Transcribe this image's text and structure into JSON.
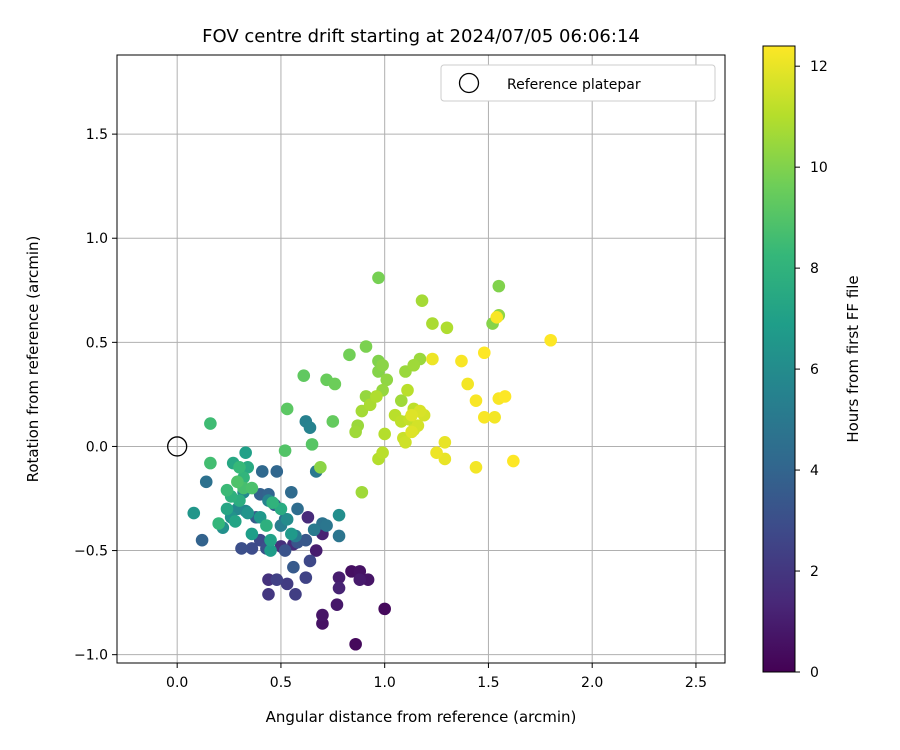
{
  "chart_data": {
    "type": "scatter",
    "title": "FOV centre drift starting at 2024/07/05 06:06:14",
    "xlabel": "Angular distance from reference (arcmin)",
    "ylabel": "Rotation from reference (arcmin)",
    "xlim": [
      -0.29,
      2.64
    ],
    "ylim": [
      -1.04,
      1.88
    ],
    "xticks": [
      0.0,
      0.5,
      1.0,
      1.5,
      2.0,
      2.5
    ],
    "xtick_labels": [
      "0.0",
      "0.5",
      "1.0",
      "1.5",
      "2.0",
      "2.5"
    ],
    "yticks": [
      -1.0,
      -0.5,
      0.0,
      0.5,
      1.0,
      1.5
    ],
    "ytick_labels": [
      "−1.0",
      "−0.5",
      "0.0",
      "0.5",
      "1.0",
      "1.5"
    ],
    "grid": true,
    "legend": {
      "placement": "top-right",
      "entries": [
        "Reference platepar"
      ]
    },
    "reference_point": {
      "name": "Reference platepar",
      "x": 0.0,
      "y": 0.0,
      "marker": "open-circle"
    },
    "colorbar": {
      "label": "Hours from first FF file",
      "colormap": "viridis",
      "range": [
        0,
        12.4
      ],
      "ticks": [
        0,
        2,
        4,
        6,
        8,
        10,
        12
      ],
      "tick_labels": [
        "0",
        "2",
        "4",
        "6",
        "8",
        "10",
        "12"
      ],
      "colors": [
        "#440154",
        "#482878",
        "#3e4989",
        "#31688e",
        "#26828e",
        "#1f9e89",
        "#35b779",
        "#6ece58",
        "#b5de2b",
        "#fde725"
      ]
    },
    "points": [
      [
        1.0,
        -0.78,
        0.3
      ],
      [
        0.86,
        -0.95,
        0.3
      ],
      [
        0.7,
        -0.85,
        0.6
      ],
      [
        0.7,
        -0.81,
        0.7
      ],
      [
        0.77,
        -0.76,
        0.8
      ],
      [
        0.84,
        -0.6,
        0.5
      ],
      [
        0.88,
        -0.6,
        0.6
      ],
      [
        0.92,
        -0.64,
        0.7
      ],
      [
        0.78,
        -0.63,
        1.0
      ],
      [
        0.78,
        -0.68,
        1.2
      ],
      [
        0.88,
        -0.64,
        0.9
      ],
      [
        0.67,
        -0.5,
        1.0
      ],
      [
        0.7,
        -0.42,
        1.2
      ],
      [
        0.63,
        -0.34,
        1.5
      ],
      [
        0.56,
        -0.47,
        1.6
      ],
      [
        0.5,
        -0.48,
        1.7
      ],
      [
        0.44,
        -0.64,
        1.8
      ],
      [
        0.44,
        -0.71,
        2.0
      ],
      [
        0.53,
        -0.66,
        2.2
      ],
      [
        0.57,
        -0.71,
        2.3
      ],
      [
        0.48,
        -0.64,
        2.4
      ],
      [
        0.62,
        -0.63,
        2.5
      ],
      [
        0.64,
        -0.55,
        2.7
      ],
      [
        0.4,
        -0.45,
        2.8
      ],
      [
        0.36,
        -0.49,
        2.9
      ],
      [
        0.31,
        -0.49,
        3.0
      ],
      [
        0.43,
        -0.49,
        3.1
      ],
      [
        0.52,
        -0.5,
        3.2
      ],
      [
        0.58,
        -0.46,
        3.3
      ],
      [
        0.62,
        -0.45,
        3.4
      ],
      [
        0.56,
        -0.58,
        3.5
      ],
      [
        0.47,
        -0.28,
        3.6
      ],
      [
        0.38,
        -0.34,
        3.7
      ],
      [
        0.4,
        -0.23,
        3.8
      ],
      [
        0.12,
        -0.45,
        3.9
      ],
      [
        0.44,
        -0.23,
        4.0
      ],
      [
        0.48,
        -0.12,
        4.1
      ],
      [
        0.41,
        -0.12,
        4.2
      ],
      [
        0.55,
        -0.22,
        4.3
      ],
      [
        0.58,
        -0.3,
        4.4
      ],
      [
        0.52,
        -0.35,
        4.5
      ],
      [
        0.14,
        -0.17,
        4.6
      ],
      [
        0.7,
        -0.37,
        4.7
      ],
      [
        0.78,
        -0.43,
        4.8
      ],
      [
        0.72,
        -0.38,
        4.9
      ],
      [
        0.67,
        -0.12,
        5.0
      ],
      [
        0.66,
        -0.4,
        5.1
      ],
      [
        0.57,
        -0.43,
        5.2
      ],
      [
        0.5,
        -0.38,
        5.3
      ],
      [
        0.62,
        0.12,
        5.4
      ],
      [
        0.64,
        0.09,
        5.5
      ],
      [
        0.44,
        -0.26,
        5.6
      ],
      [
        0.33,
        -0.31,
        5.7
      ],
      [
        0.29,
        -0.3,
        5.8
      ],
      [
        0.32,
        -0.22,
        5.9
      ],
      [
        0.53,
        -0.35,
        6.0
      ],
      [
        0.78,
        -0.33,
        6.1
      ],
      [
        0.22,
        -0.39,
        6.2
      ],
      [
        0.26,
        -0.34,
        6.3
      ],
      [
        0.34,
        -0.32,
        6.4
      ],
      [
        0.08,
        -0.32,
        6.5
      ],
      [
        0.4,
        -0.34,
        6.6
      ],
      [
        0.55,
        -0.42,
        6.7
      ],
      [
        0.45,
        -0.5,
        6.8
      ],
      [
        0.36,
        -0.42,
        6.9
      ],
      [
        0.33,
        -0.03,
        7.0
      ],
      [
        0.45,
        -0.45,
        7.1
      ],
      [
        0.28,
        -0.36,
        7.2
      ],
      [
        0.24,
        -0.3,
        7.3
      ],
      [
        0.27,
        -0.08,
        7.4
      ],
      [
        0.34,
        -0.1,
        7.5
      ],
      [
        0.5,
        -0.3,
        7.6
      ],
      [
        0.3,
        -0.26,
        7.7
      ],
      [
        0.43,
        -0.38,
        7.8
      ],
      [
        0.26,
        -0.24,
        7.9
      ],
      [
        0.46,
        -0.27,
        8.0
      ],
      [
        0.32,
        -0.15,
        8.1
      ],
      [
        0.2,
        -0.37,
        8.2
      ],
      [
        0.3,
        -0.1,
        8.3
      ],
      [
        0.24,
        -0.21,
        8.4
      ],
      [
        0.16,
        0.11,
        8.5
      ],
      [
        0.16,
        -0.08,
        8.6
      ],
      [
        0.32,
        -0.2,
        8.7
      ],
      [
        0.36,
        -0.2,
        8.8
      ],
      [
        0.29,
        -0.17,
        8.9
      ],
      [
        0.52,
        -0.02,
        9.0
      ],
      [
        0.65,
        0.01,
        9.1
      ],
      [
        0.53,
        0.18,
        9.2
      ],
      [
        0.61,
        0.34,
        9.3
      ],
      [
        0.75,
        0.12,
        9.4
      ],
      [
        0.72,
        0.32,
        9.5
      ],
      [
        0.76,
        0.3,
        9.6
      ],
      [
        0.83,
        0.44,
        9.7
      ],
      [
        0.97,
        0.81,
        9.8
      ],
      [
        0.91,
        0.48,
        9.9
      ],
      [
        0.97,
        0.41,
        10.0
      ],
      [
        0.97,
        0.36,
        10.1
      ],
      [
        0.99,
        0.39,
        10.2
      ],
      [
        1.01,
        0.32,
        10.3
      ],
      [
        0.99,
        0.27,
        10.4
      ],
      [
        1.1,
        0.36,
        10.5
      ],
      [
        1.08,
        0.22,
        10.6
      ],
      [
        1.18,
        0.7,
        10.7
      ],
      [
        1.23,
        0.59,
        10.8
      ],
      [
        1.3,
        0.57,
        10.9
      ],
      [
        1.55,
        0.77,
        10.0
      ],
      [
        1.52,
        0.59,
        10.1
      ],
      [
        1.55,
        0.63,
        10.3
      ],
      [
        1.17,
        0.42,
        10.5
      ],
      [
        1.14,
        0.39,
        10.6
      ],
      [
        0.91,
        0.24,
        10.4
      ],
      [
        0.87,
        0.1,
        10.5
      ],
      [
        0.86,
        0.07,
        10.6
      ],
      [
        0.89,
        0.17,
        10.7
      ],
      [
        0.93,
        0.2,
        10.8
      ],
      [
        0.96,
        0.24,
        10.9
      ],
      [
        1.0,
        0.06,
        11.0
      ],
      [
        1.05,
        0.15,
        11.1
      ],
      [
        1.08,
        0.12,
        11.2
      ],
      [
        1.11,
        0.27,
        11.1
      ],
      [
        1.14,
        0.18,
        11.2
      ],
      [
        1.12,
        0.13,
        11.3
      ],
      [
        1.09,
        0.04,
        11.4
      ],
      [
        1.1,
        0.02,
        11.5
      ],
      [
        1.14,
        0.08,
        11.5
      ],
      [
        1.16,
        0.1,
        11.6
      ],
      [
        1.19,
        0.15,
        11.6
      ],
      [
        1.17,
        0.17,
        11.7
      ],
      [
        1.13,
        0.15,
        11.8
      ],
      [
        1.13,
        0.07,
        11.8
      ],
      [
        0.97,
        -0.06,
        11.0
      ],
      [
        0.99,
        -0.03,
        11.1
      ],
      [
        0.89,
        -0.22,
        10.6
      ],
      [
        0.69,
        -0.1,
        10.2
      ],
      [
        1.23,
        0.42,
        12.1
      ],
      [
        1.37,
        0.41,
        12.3
      ],
      [
        1.4,
        0.3,
        12.2
      ],
      [
        1.44,
        0.22,
        12.3
      ],
      [
        1.48,
        0.14,
        12.3
      ],
      [
        1.48,
        0.45,
        12.4
      ],
      [
        1.53,
        0.14,
        12.2
      ],
      [
        1.55,
        0.23,
        12.3
      ],
      [
        1.58,
        0.24,
        12.4
      ],
      [
        1.62,
        -0.07,
        12.4
      ],
      [
        1.8,
        0.51,
        12.4
      ],
      [
        1.54,
        0.62,
        12.3
      ],
      [
        1.44,
        -0.1,
        12.2
      ],
      [
        1.29,
        -0.06,
        12.0
      ],
      [
        1.29,
        0.02,
        12.0
      ],
      [
        1.25,
        -0.03,
        12.1
      ]
    ]
  }
}
